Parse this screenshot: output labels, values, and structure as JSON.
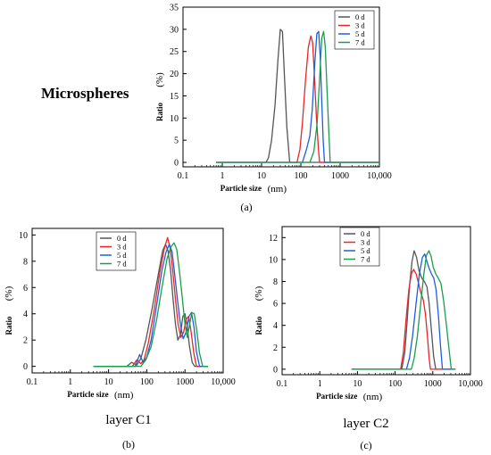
{
  "figure": {
    "title_a": "Microspheres",
    "label_b": "layer C1",
    "label_c": "layer C2",
    "cap_a": "(a)",
    "cap_b": "(b)",
    "cap_c": "(c)"
  },
  "chart_data": [
    {
      "id": "a",
      "type": "line",
      "xlabel": "Particle size",
      "xunit": "(nm)",
      "ylabel": "Ratio",
      "yunit": "(%)",
      "xscale": "log",
      "xlim": [
        0.1,
        10000
      ],
      "ylim": [
        -1,
        35
      ],
      "xticks": [
        "0.1",
        "1",
        "10",
        "100",
        "1000",
        "10,000"
      ],
      "yticks": [
        0,
        5,
        10,
        15,
        20,
        25,
        30,
        35
      ],
      "legend_position": "top-right",
      "series": [
        {
          "name": "0 d",
          "color": "#555555",
          "points": [
            [
              0.7,
              0
            ],
            [
              13,
              0
            ],
            [
              15,
              1
            ],
            [
              18,
              5
            ],
            [
              22,
              13
            ],
            [
              26,
              23
            ],
            [
              30,
              30
            ],
            [
              34,
              29.5
            ],
            [
              38,
              20
            ],
            [
              44,
              8
            ],
            [
              52,
              0
            ],
            [
              10000,
              0
            ]
          ]
        },
        {
          "name": "3 d",
          "color": "#e8262a",
          "points": [
            [
              0.7,
              0
            ],
            [
              80,
              0
            ],
            [
              95,
              3
            ],
            [
              110,
              9
            ],
            [
              130,
              18
            ],
            [
              155,
              26
            ],
            [
              180,
              28.5
            ],
            [
              200,
              27
            ],
            [
              220,
              20
            ],
            [
              250,
              10
            ],
            [
              280,
              3
            ],
            [
              300,
              0
            ],
            [
              10000,
              0
            ]
          ]
        },
        {
          "name": "5 d",
          "color": "#1f5fd6",
          "points": [
            [
              0.7,
              0
            ],
            [
              110,
              0
            ],
            [
              140,
              3
            ],
            [
              170,
              6
            ],
            [
              195,
              12
            ],
            [
              225,
              22
            ],
            [
              255,
              29
            ],
            [
              285,
              29.5
            ],
            [
              310,
              24
            ],
            [
              340,
              14
            ],
            [
              370,
              5
            ],
            [
              400,
              0
            ],
            [
              10000,
              0
            ]
          ]
        },
        {
          "name": "7 d",
          "color": "#1a9e4a",
          "points": [
            [
              0.7,
              0
            ],
            [
              170,
              0
            ],
            [
              215,
              2.5
            ],
            [
              260,
              9
            ],
            [
              305,
              20
            ],
            [
              340,
              28
            ],
            [
              380,
              29.5
            ],
            [
              420,
              26
            ],
            [
              460,
              17
            ],
            [
              510,
              8
            ],
            [
              560,
              0
            ],
            [
              10000,
              0
            ]
          ]
        }
      ]
    },
    {
      "id": "b",
      "type": "line",
      "xlabel": "Particle size",
      "xunit": "(nm)",
      "ylabel": "Ratio",
      "yunit": "(%)",
      "xscale": "log",
      "xlim": [
        0.1,
        10000
      ],
      "ylim": [
        -0.5,
        10.5
      ],
      "xticks": [
        "0.1",
        "1",
        "10",
        "100",
        "1000",
        "10,000"
      ],
      "yticks": [
        0,
        2,
        4,
        6,
        8,
        10
      ],
      "legend_position": "top-center",
      "series": [
        {
          "name": "0 d",
          "color": "#555555",
          "points": [
            [
              4,
              0
            ],
            [
              30,
              0
            ],
            [
              40,
              0.3
            ],
            [
              55,
              0.1
            ],
            [
              70,
              0.6
            ],
            [
              95,
              2
            ],
            [
              140,
              4.5
            ],
            [
              200,
              7
            ],
            [
              260,
              8.8
            ],
            [
              310,
              9.3
            ],
            [
              360,
              8.8
            ],
            [
              420,
              7.3
            ],
            [
              480,
              5.3
            ],
            [
              560,
              3.3
            ],
            [
              650,
              2
            ],
            [
              760,
              2.4
            ],
            [
              880,
              3.8
            ],
            [
              1000,
              4
            ],
            [
              1150,
              3
            ],
            [
              1300,
              1.6
            ],
            [
              1550,
              0.3
            ],
            [
              1800,
              0
            ],
            [
              4000,
              0
            ]
          ]
        },
        {
          "name": "3 d",
          "color": "#e8262a",
          "points": [
            [
              4,
              0
            ],
            [
              42,
              0
            ],
            [
              55,
              0.5
            ],
            [
              70,
              0.2
            ],
            [
              85,
              0.5
            ],
            [
              110,
              1.8
            ],
            [
              155,
              4.2
            ],
            [
              220,
              7.2
            ],
            [
              290,
              9
            ],
            [
              350,
              9.8
            ],
            [
              410,
              9
            ],
            [
              480,
              7.2
            ],
            [
              560,
              5.2
            ],
            [
              660,
              3.2
            ],
            [
              780,
              2.2
            ],
            [
              920,
              2.6
            ],
            [
              1080,
              3.6
            ],
            [
              1250,
              3.8
            ],
            [
              1450,
              2.6
            ],
            [
              1700,
              1
            ],
            [
              2000,
              0
            ],
            [
              4000,
              0
            ]
          ]
        },
        {
          "name": "5 d",
          "color": "#1f5fd6",
          "points": [
            [
              4,
              0
            ],
            [
              50,
              0
            ],
            [
              65,
              0.9
            ],
            [
              80,
              0.3
            ],
            [
              100,
              0.7
            ],
            [
              130,
              2
            ],
            [
              180,
              4.6
            ],
            [
              250,
              7.3
            ],
            [
              320,
              8.7
            ],
            [
              390,
              9.3
            ],
            [
              460,
              8.7
            ],
            [
              540,
              7
            ],
            [
              640,
              5
            ],
            [
              760,
              3.2
            ],
            [
              900,
              2.1
            ],
            [
              1070,
              2.6
            ],
            [
              1270,
              3.8
            ],
            [
              1480,
              4.1
            ],
            [
              1720,
              3
            ],
            [
              2000,
              1.1
            ],
            [
              2400,
              0
            ],
            [
              4000,
              0
            ]
          ]
        },
        {
          "name": "7 d",
          "color": "#1a9e4a",
          "points": [
            [
              4,
              0
            ],
            [
              70,
              0
            ],
            [
              95,
              0.5
            ],
            [
              130,
              1.5
            ],
            [
              180,
              3.5
            ],
            [
              250,
              6
            ],
            [
              340,
              8.2
            ],
            [
              430,
              9.1
            ],
            [
              520,
              9.4
            ],
            [
              610,
              8.9
            ],
            [
              720,
              7.2
            ],
            [
              850,
              5.2
            ],
            [
              1000,
              3.2
            ],
            [
              1150,
              2.2
            ],
            [
              1320,
              3.2
            ],
            [
              1520,
              4.1
            ],
            [
              1750,
              4
            ],
            [
              2050,
              2.7
            ],
            [
              2400,
              1
            ],
            [
              2900,
              0
            ],
            [
              4000,
              0
            ]
          ]
        }
      ]
    },
    {
      "id": "c",
      "type": "line",
      "xlabel": "Particle size",
      "xunit": "(nm)",
      "ylabel": "Ratio",
      "yunit": "(%)",
      "xscale": "log",
      "xlim": [
        0.1,
        10000
      ],
      "ylim": [
        -0.5,
        13
      ],
      "xticks": [
        "0.1",
        "1",
        "10",
        "100",
        "1000",
        "10,000"
      ],
      "yticks": [
        0,
        2,
        4,
        6,
        8,
        10,
        12
      ],
      "legend_position": "top-center",
      "series": [
        {
          "name": "0 d",
          "color": "#555555",
          "points": [
            [
              7,
              0
            ],
            [
              150,
              0
            ],
            [
              180,
              1.5
            ],
            [
              210,
              4.5
            ],
            [
              240,
              7.5
            ],
            [
              280,
              9.8
            ],
            [
              320,
              10.8
            ],
            [
              370,
              10.2
            ],
            [
              430,
              9
            ],
            [
              510,
              8.3
            ],
            [
              600,
              8
            ],
            [
              700,
              7.5
            ],
            [
              800,
              6
            ],
            [
              920,
              3.5
            ],
            [
              1050,
              1.2
            ],
            [
              1200,
              0
            ],
            [
              4000,
              0
            ]
          ]
        },
        {
          "name": "3 d",
          "color": "#e8262a",
          "points": [
            [
              7,
              0
            ],
            [
              140,
              0
            ],
            [
              165,
              1.5
            ],
            [
              195,
              4.5
            ],
            [
              230,
              7.2
            ],
            [
              270,
              8.7
            ],
            [
              310,
              9.1
            ],
            [
              360,
              8.7
            ],
            [
              420,
              7.8
            ],
            [
              480,
              7
            ],
            [
              560,
              6.3
            ],
            [
              640,
              5
            ],
            [
              720,
              3
            ],
            [
              800,
              1
            ],
            [
              870,
              0
            ],
            [
              4000,
              0
            ]
          ]
        },
        {
          "name": "5 d",
          "color": "#1f5fd6",
          "points": [
            [
              7,
              0
            ],
            [
              200,
              0
            ],
            [
              240,
              1
            ],
            [
              290,
              3
            ],
            [
              360,
              6
            ],
            [
              440,
              8.7
            ],
            [
              530,
              10.2
            ],
            [
              610,
              10.5
            ],
            [
              700,
              9.8
            ],
            [
              800,
              9.2
            ],
            [
              920,
              8.7
            ],
            [
              1060,
              8.3
            ],
            [
              1220,
              7.3
            ],
            [
              1400,
              5
            ],
            [
              1600,
              2.2
            ],
            [
              1800,
              0
            ],
            [
              4000,
              0
            ]
          ]
        },
        {
          "name": "7 d",
          "color": "#1a9e4a",
          "points": [
            [
              7,
              0
            ],
            [
              270,
              0
            ],
            [
              320,
              1
            ],
            [
              390,
              3
            ],
            [
              480,
              6
            ],
            [
              580,
              8.7
            ],
            [
              680,
              10.4
            ],
            [
              790,
              10.8
            ],
            [
              900,
              10.3
            ],
            [
              1030,
              9.3
            ],
            [
              1200,
              8.7
            ],
            [
              1400,
              8.3
            ],
            [
              1650,
              7.8
            ],
            [
              1950,
              6.2
            ],
            [
              2300,
              4
            ],
            [
              2700,
              1.8
            ],
            [
              3100,
              0
            ],
            [
              4000,
              0
            ]
          ]
        }
      ]
    }
  ]
}
